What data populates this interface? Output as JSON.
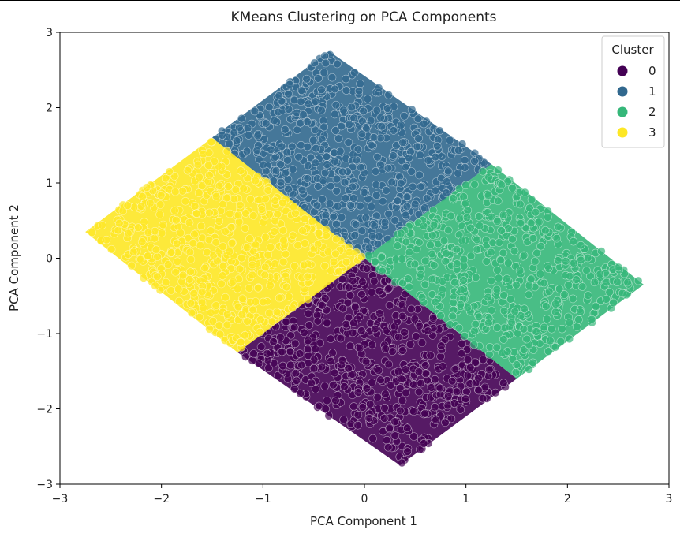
{
  "chart_data": {
    "type": "scatter",
    "title": "KMeans Clustering on PCA Components",
    "xlabel": "PCA Component 1",
    "ylabel": "PCA Component 2",
    "xlim": [
      -3,
      3
    ],
    "ylim": [
      -3,
      3
    ],
    "xticks": [
      -3,
      -2,
      -1,
      0,
      1,
      2,
      3
    ],
    "yticks": [
      -3,
      -2,
      -1,
      0,
      1,
      2,
      3
    ],
    "xtick_labels": [
      "−3",
      "−2",
      "−1",
      "0",
      "1",
      "2",
      "3"
    ],
    "ytick_labels": [
      "−3",
      "−2",
      "−1",
      "0",
      "1",
      "2",
      "3"
    ],
    "grid": false,
    "legend": {
      "title": "Cluster",
      "placement": "top-right",
      "entries": [
        {
          "label": "0",
          "color": "#440154"
        },
        {
          "label": "1",
          "color": "#31688e"
        },
        {
          "label": "2",
          "color": "#35b779"
        },
        {
          "label": "3",
          "color": "#fde725"
        }
      ]
    },
    "series": [
      {
        "name": "0",
        "color": "#440154",
        "region": [
          [
            0.0,
            0.0
          ],
          [
            1.5,
            -1.6
          ],
          [
            0.35,
            -2.75
          ],
          [
            -1.25,
            -1.25
          ]
        ]
      },
      {
        "name": "1",
        "color": "#31688e",
        "region": [
          [
            0.0,
            0.0
          ],
          [
            -1.5,
            1.6
          ],
          [
            -0.35,
            2.75
          ],
          [
            1.25,
            1.25
          ]
        ]
      },
      {
        "name": "2",
        "color": "#35b779",
        "region": [
          [
            0.0,
            0.0
          ],
          [
            1.25,
            1.25
          ],
          [
            2.75,
            -0.35
          ],
          [
            1.5,
            -1.6
          ]
        ]
      },
      {
        "name": "3",
        "color": "#fde725",
        "region": [
          [
            0.0,
            0.0
          ],
          [
            -1.25,
            -1.25
          ],
          [
            -2.75,
            0.35
          ],
          [
            -1.5,
            1.6
          ]
        ]
      }
    ]
  }
}
